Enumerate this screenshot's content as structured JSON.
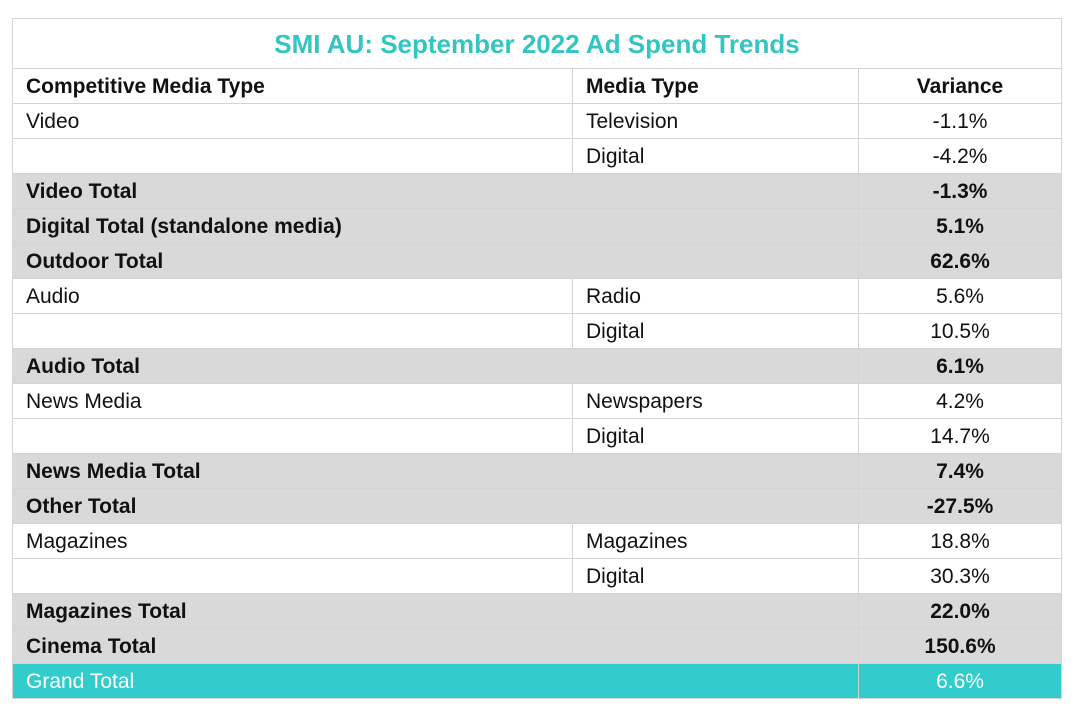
{
  "title": "SMI AU: September 2022 Ad Spend Trends",
  "colors": {
    "title": "#33c4c4",
    "total_row_bg": "#d9d9d9",
    "grand_total_bg": "#33cccc",
    "grand_total_text": "#ffffff"
  },
  "headers": {
    "competitive_media_type": "Competitive Media Type",
    "media_type": "Media Type",
    "variance": "Variance"
  },
  "rows": [
    {
      "kind": "detail",
      "competitive": "Video",
      "media": "Television",
      "variance": "-1.1%"
    },
    {
      "kind": "detail",
      "competitive": "",
      "media": "Digital",
      "variance": "-4.2%"
    },
    {
      "kind": "total",
      "competitive": "Video Total",
      "media": "",
      "variance": "-1.3%"
    },
    {
      "kind": "total",
      "competitive": "Digital Total (standalone media)",
      "media": "",
      "variance": "5.1%"
    },
    {
      "kind": "total",
      "competitive": "Outdoor Total",
      "media": "",
      "variance": "62.6%"
    },
    {
      "kind": "detail",
      "competitive": "Audio",
      "media": "Radio",
      "variance": "5.6%"
    },
    {
      "kind": "detail",
      "competitive": "",
      "media": "Digital",
      "variance": "10.5%"
    },
    {
      "kind": "total",
      "competitive": "Audio Total",
      "media": "",
      "variance": "6.1%"
    },
    {
      "kind": "detail",
      "competitive": "News Media",
      "media": "Newspapers",
      "variance": "4.2%"
    },
    {
      "kind": "detail",
      "competitive": "",
      "media": "Digital",
      "variance": "14.7%"
    },
    {
      "kind": "total",
      "competitive": "News Media Total",
      "media": "",
      "variance": "7.4%"
    },
    {
      "kind": "total",
      "competitive": "Other Total",
      "media": "",
      "variance": "-27.5%"
    },
    {
      "kind": "detail",
      "competitive": "Magazines",
      "media": "Magazines",
      "variance": "18.8%"
    },
    {
      "kind": "detail",
      "competitive": "",
      "media": "Digital",
      "variance": "30.3%"
    },
    {
      "kind": "total",
      "competitive": "Magazines Total",
      "media": "",
      "variance": "22.0%"
    },
    {
      "kind": "total",
      "competitive": "Cinema Total",
      "media": "",
      "variance": "150.6%"
    },
    {
      "kind": "grand",
      "competitive": "Grand Total",
      "media": "",
      "variance": "6.6%"
    }
  ]
}
